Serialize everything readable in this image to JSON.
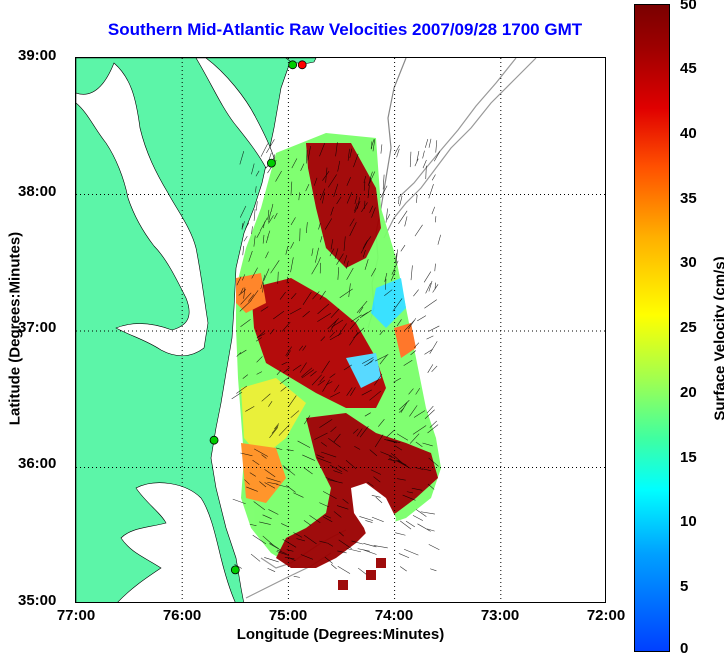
{
  "chart_data": {
    "type": "heatmap",
    "title": "Southern Mid-Atlantic Raw Velocities 2007/09/28 1700 GMT",
    "xlabel": "Longitude (Degrees:Minutes)",
    "ylabel": "Latitude (Degrees:Minutes)",
    "x_ticks": [
      "77:00",
      "76:00",
      "75:00",
      "74:00",
      "73:00",
      "72:00"
    ],
    "y_ticks": [
      "39:00",
      "38:00",
      "37:00",
      "36:00",
      "35:00"
    ],
    "xlim": [
      -77,
      -72
    ],
    "ylim": [
      35,
      39
    ],
    "grid": true,
    "colorbar": {
      "label": "Surface Velocity (cm/s)",
      "range": [
        0,
        50
      ],
      "ticks": [
        "0",
        "5",
        "10",
        "15",
        "20",
        "25",
        "30",
        "35",
        "40",
        "45",
        "50"
      ]
    },
    "land_color": "#5cf5a8",
    "stations": [
      {
        "lon": -74.87,
        "lat": 38.95,
        "color": "#ff0000"
      },
      {
        "lon": -74.96,
        "lat": 38.95,
        "color": "#00cc00"
      },
      {
        "lon": -75.16,
        "lat": 38.23,
        "color": "#00cc00"
      },
      {
        "lon": -75.7,
        "lat": 36.2,
        "color": "#00cc00"
      },
      {
        "lon": -75.5,
        "lat": 35.25,
        "color": "#00cc00"
      }
    ]
  }
}
